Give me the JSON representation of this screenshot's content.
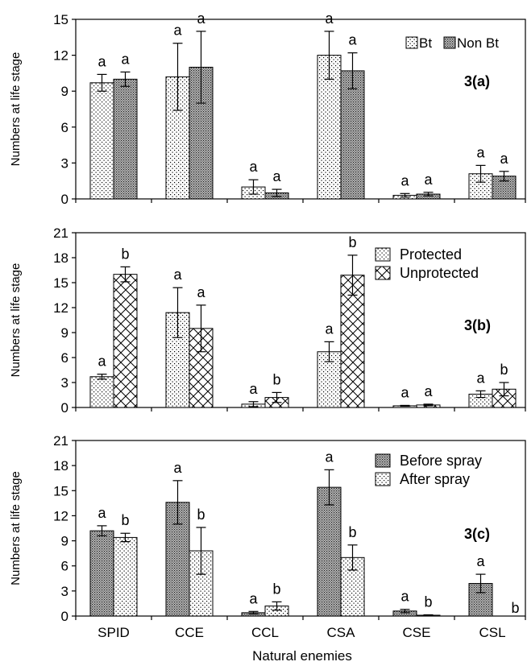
{
  "chart_data": [
    {
      "type": "bar",
      "panel_label": "3(a)",
      "ylabel": "Numbers at life stage",
      "ylim": [
        0,
        15
      ],
      "yticks": [
        0,
        3,
        6,
        9,
        12,
        15
      ],
      "categories": [
        "SPID",
        "CCE",
        "CCL",
        "CSA",
        "CSE",
        "CSL"
      ],
      "legend_position": "top-right",
      "series": [
        {
          "name": "Bt",
          "pattern": "dots",
          "values": [
            9.7,
            10.2,
            1.0,
            12.0,
            0.3,
            2.1
          ],
          "errors": [
            0.7,
            2.8,
            0.6,
            2.0,
            0.15,
            0.7
          ],
          "letters": [
            "a",
            "a",
            "a",
            "a",
            "a",
            "a"
          ]
        },
        {
          "name": "Non Bt",
          "pattern": "dense",
          "values": [
            10.0,
            11.0,
            0.5,
            10.7,
            0.4,
            1.9
          ],
          "errors": [
            0.6,
            3.0,
            0.3,
            1.5,
            0.15,
            0.4
          ],
          "letters": [
            "a",
            "a",
            "a",
            "a",
            "a",
            "a"
          ]
        }
      ]
    },
    {
      "type": "bar",
      "panel_label": "3(b)",
      "ylabel": "Numbers at life stage",
      "ylim": [
        0,
        21
      ],
      "yticks": [
        0,
        3,
        6,
        9,
        12,
        15,
        18,
        21
      ],
      "categories": [
        "SPID",
        "CCE",
        "CCL",
        "CSA",
        "CSE",
        "CSL"
      ],
      "legend_position": "top-right",
      "series": [
        {
          "name": "Protected",
          "pattern": "dots",
          "values": [
            3.7,
            11.4,
            0.4,
            6.7,
            0.2,
            1.6
          ],
          "errors": [
            0.3,
            3.0,
            0.3,
            1.2,
            0.05,
            0.4
          ],
          "letters": [
            "a",
            "a",
            "a",
            "a",
            "a",
            "a"
          ]
        },
        {
          "name": "Unprotected",
          "pattern": "cross",
          "values": [
            16.0,
            9.5,
            1.2,
            15.9,
            0.3,
            2.2
          ],
          "errors": [
            0.9,
            2.8,
            0.6,
            2.4,
            0.1,
            0.8
          ],
          "letters": [
            "b",
            "a",
            "b",
            "b",
            "a",
            "b"
          ]
        }
      ]
    },
    {
      "type": "bar",
      "panel_label": "3(c)",
      "ylabel": "Numbers at life stage",
      "xlabel": "Natural enemies",
      "ylim": [
        0,
        21
      ],
      "yticks": [
        0,
        3,
        6,
        9,
        12,
        15,
        18,
        21
      ],
      "categories": [
        "SPID",
        "CCE",
        "CCL",
        "CSA",
        "CSE",
        "CSL"
      ],
      "legend_position": "top-right",
      "series": [
        {
          "name": "Before spray",
          "pattern": "dense",
          "values": [
            10.2,
            13.6,
            0.4,
            15.4,
            0.6,
            3.9
          ],
          "errors": [
            0.6,
            2.6,
            0.15,
            2.1,
            0.2,
            1.1
          ],
          "letters": [
            "a",
            "a",
            "a",
            "a",
            "a",
            "a"
          ]
        },
        {
          "name": "After spray",
          "pattern": "dots",
          "values": [
            9.4,
            7.8,
            1.2,
            7.0,
            0.1,
            0.0
          ],
          "errors": [
            0.5,
            2.8,
            0.5,
            1.5,
            0.05,
            0
          ],
          "letters": [
            "b",
            "b",
            "b",
            "b",
            "b",
            "b"
          ]
        }
      ]
    }
  ]
}
